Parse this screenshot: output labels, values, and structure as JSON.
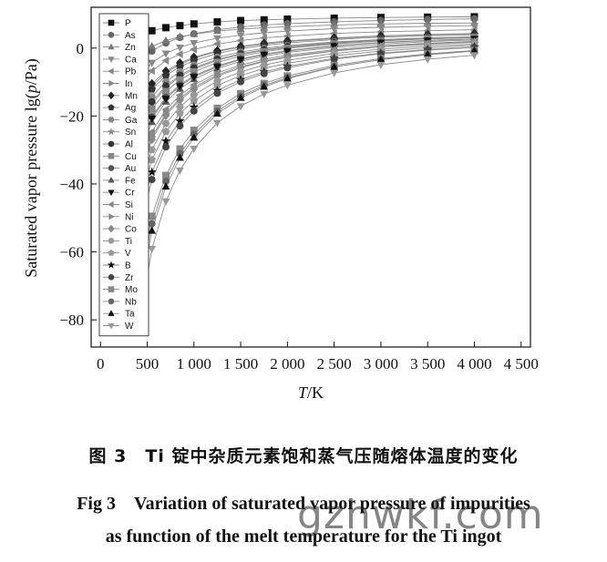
{
  "chart_data": {
    "type": "line",
    "xlabel_italic": "T",
    "xlabel_unit": "/K",
    "ylabel_prefix": "Saturated vapor pressure lg(",
    "ylabel_italic": "p",
    "ylabel_suffix": "/Pa)",
    "xlim": [
      -100,
      4600
    ],
    "ylim": [
      -88,
      12
    ],
    "xticks": [
      0,
      500,
      1000,
      1500,
      2000,
      2500,
      3000,
      3500,
      4000,
      4500
    ],
    "xtick_labels": [
      "0",
      "500",
      "1 000",
      "1 500",
      "2 000",
      "2 500",
      "3 000",
      "3 500",
      "4 000",
      "4 500"
    ],
    "yticks": [
      0,
      -20,
      -40,
      -60,
      -80
    ],
    "ytick_labels": [
      "0",
      "−20",
      "−40",
      "−60",
      "−80"
    ],
    "legend_position": "top-left",
    "x": [
      400,
      550,
      700,
      850,
      1000,
      1250,
      1500,
      1750,
      2000,
      2500,
      3000,
      3500,
      4000
    ],
    "series": [
      {
        "name": "P",
        "marker": "square",
        "color": "#111111",
        "values": [
          4.3,
          5.1,
          6.0,
          6.6,
          7.1,
          7.7,
          8.1,
          8.3,
          8.5,
          8.8,
          9.0,
          9.1,
          9.2
        ]
      },
      {
        "name": "As",
        "marker": "circle",
        "color": "#666666",
        "values": [
          -5.0,
          -0.9,
          1.5,
          3.1,
          4.2,
          5.4,
          6.2,
          6.8,
          7.2,
          7.7,
          8.1,
          8.4,
          8.6
        ]
      },
      {
        "name": "Zn",
        "marker": "triangle",
        "color": "#777777",
        "values": [
          -2.5,
          0.5,
          2.2,
          3.3,
          4.1,
          5.0,
          5.6,
          6.0,
          6.3,
          6.8,
          7.1,
          7.3,
          7.4
        ]
      },
      {
        "name": "Ca",
        "marker": "tri-down",
        "color": "#888888",
        "values": [
          -9.0,
          -4.3,
          -1.6,
          0.2,
          1.5,
          2.9,
          3.8,
          4.5,
          5.0,
          5.7,
          6.1,
          6.4,
          6.6
        ]
      },
      {
        "name": "Pb",
        "marker": "tri-left",
        "color": "#888888",
        "values": [
          -12.0,
          -6.7,
          -3.7,
          -1.8,
          -0.4,
          1.2,
          2.2,
          3.0,
          3.5,
          4.3,
          4.8,
          5.1,
          5.4
        ]
      },
      {
        "name": "In",
        "marker": "tri-right",
        "color": "#888888",
        "values": [
          -18.0,
          -11.2,
          -7.3,
          -4.8,
          -3.0,
          -1.0,
          0.3,
          1.2,
          1.9,
          2.8,
          3.5,
          3.9,
          4.2
        ]
      },
      {
        "name": "Mn",
        "marker": "diamond",
        "color": "#222222",
        "values": [
          -17.0,
          -10.5,
          -6.8,
          -4.4,
          -2.7,
          -0.8,
          0.5,
          1.4,
          2.1,
          3.0,
          3.6,
          4.0,
          4.3
        ]
      },
      {
        "name": "Ag",
        "marker": "pentagon",
        "color": "#333333",
        "values": [
          -19.0,
          -12.1,
          -8.1,
          -5.5,
          -3.7,
          -1.6,
          -0.2,
          0.8,
          1.5,
          2.5,
          3.2,
          3.6,
          3.9
        ]
      },
      {
        "name": "Ga",
        "marker": "hexagon",
        "color": "#888888",
        "values": [
          -22.0,
          -14.3,
          -9.9,
          -7.0,
          -5.0,
          -2.7,
          -1.2,
          -0.1,
          0.7,
          1.8,
          2.5,
          3.0,
          3.3
        ]
      },
      {
        "name": "Sn",
        "marker": "star",
        "color": "#888888",
        "values": [
          -25.0,
          -16.5,
          -11.6,
          -8.4,
          -6.2,
          -3.6,
          -1.9,
          -0.7,
          0.2,
          1.4,
          2.2,
          2.7,
          3.1
        ]
      },
      {
        "name": "Al",
        "marker": "circle",
        "color": "#333333",
        "values": [
          -24.0,
          -15.8,
          -11.1,
          -8.0,
          -5.8,
          -3.3,
          -1.7,
          -0.5,
          0.4,
          1.6,
          2.4,
          2.9,
          3.3
        ]
      },
      {
        "name": "Cu",
        "marker": "square",
        "color": "#888888",
        "values": [
          -27.0,
          -18.0,
          -12.8,
          -9.4,
          -7.0,
          -4.2,
          -2.4,
          -1.1,
          -0.1,
          1.2,
          2.1,
          2.7,
          3.1
        ]
      },
      {
        "name": "Au",
        "marker": "circle",
        "color": "#555555",
        "values": [
          -30.0,
          -20.2,
          -14.5,
          -10.8,
          -8.2,
          -5.2,
          -3.2,
          -1.8,
          -0.7,
          0.7,
          1.7,
          2.3,
          2.7
        ]
      },
      {
        "name": "Fe",
        "marker": "triangle",
        "color": "#555555",
        "values": [
          -32.0,
          -21.8,
          -15.8,
          -12.0,
          -9.2,
          -6.0,
          -3.9,
          -2.4,
          -1.3,
          0.2,
          1.2,
          1.9,
          2.4
        ]
      },
      {
        "name": "Cr",
        "marker": "tri-down",
        "color": "#111111",
        "values": [
          -30.5,
          -20.7,
          -14.9,
          -11.2,
          -8.5,
          -5.5,
          -3.4,
          -2.0,
          -0.9,
          0.6,
          1.6,
          2.2,
          2.7
        ]
      },
      {
        "name": "Si",
        "marker": "tri-left",
        "color": "#888888",
        "values": [
          -36.0,
          -24.7,
          -18.1,
          -13.9,
          -10.9,
          -7.3,
          -5.0,
          -3.3,
          -2.1,
          -0.5,
          0.7,
          1.4,
          2.0
        ]
      },
      {
        "name": "Ni",
        "marker": "tri-right",
        "color": "#888888",
        "values": [
          -38.0,
          -26.1,
          -19.3,
          -14.8,
          -11.6,
          -7.9,
          -5.5,
          -3.8,
          -2.5,
          -0.8,
          0.4,
          1.2,
          1.8
        ]
      },
      {
        "name": "Co",
        "marker": "diamond",
        "color": "#888888",
        "values": [
          -39.0,
          -26.9,
          -19.8,
          -15.3,
          -12.1,
          -8.3,
          -5.8,
          -4.0,
          -2.7,
          -0.9,
          0.3,
          1.1,
          1.7
        ]
      },
      {
        "name": "Ti",
        "marker": "hexagon",
        "color": "#999999",
        "values": [
          -43.0,
          -29.9,
          -22.2,
          -17.3,
          -13.8,
          -9.7,
          -7.0,
          -5.0,
          -3.6,
          -1.6,
          -0.3,
          0.6,
          1.2
        ]
      },
      {
        "name": "V",
        "marker": "pentagon",
        "color": "#999999",
        "values": [
          -47.0,
          -32.9,
          -24.6,
          -19.2,
          -15.5,
          -11.0,
          -8.1,
          -6.0,
          -4.5,
          -2.3,
          -0.9,
          0.1,
          0.8
        ]
      },
      {
        "name": "B",
        "marker": "star",
        "color": "#111111",
        "values": [
          -52.0,
          -36.5,
          -27.4,
          -21.5,
          -17.4,
          -12.5,
          -9.3,
          -7.0,
          -5.4,
          -3.0,
          -1.5,
          -0.4,
          0.3
        ]
      },
      {
        "name": "Zr",
        "marker": "circle",
        "color": "#444444",
        "values": [
          -55.0,
          -38.7,
          -29.1,
          -22.9,
          -18.5,
          -13.3,
          -9.9,
          -7.5,
          -5.8,
          -3.3,
          -1.7,
          -0.6,
          0.2
        ]
      },
      {
        "name": "Mo",
        "marker": "square",
        "color": "#888888",
        "values": [
          -70.0,
          -49.5,
          -37.5,
          -29.7,
          -24.2,
          -17.7,
          -13.4,
          -10.4,
          -8.2,
          -5.1,
          -3.1,
          -1.7,
          -0.7
        ]
      },
      {
        "name": "Nb",
        "marker": "circle",
        "color": "#666666",
        "values": [
          -73.0,
          -51.7,
          -39.2,
          -31.1,
          -25.4,
          -18.6,
          -14.2,
          -11.0,
          -8.7,
          -5.5,
          -3.4,
          -2.0,
          -0.9
        ]
      },
      {
        "name": "Ta",
        "marker": "triangle",
        "color": "#111111",
        "values": [
          -76.0,
          -53.8,
          -40.8,
          -32.3,
          -26.4,
          -19.3,
          -14.7,
          -11.4,
          -9.0,
          -5.6,
          -3.4,
          -1.9,
          -0.8
        ]
      },
      {
        "name": "W",
        "marker": "tri-down",
        "color": "#999999",
        "values": [
          -83.0,
          -59.1,
          -45.1,
          -36.0,
          -29.6,
          -22.0,
          -17.1,
          -13.5,
          -10.9,
          -7.3,
          -4.9,
          -3.3,
          -2.1
        ]
      }
    ]
  },
  "captions": {
    "cn": "图 3　Ti 锭中杂质元素饱和蒸气压随熔体温度的变化",
    "en_line1": "Fig 3　Variation of saturated vapor pressure of impurities",
    "en_line2": "as function of the melt temperature for the Ti ingot"
  },
  "watermark": "gzhwkf.com"
}
